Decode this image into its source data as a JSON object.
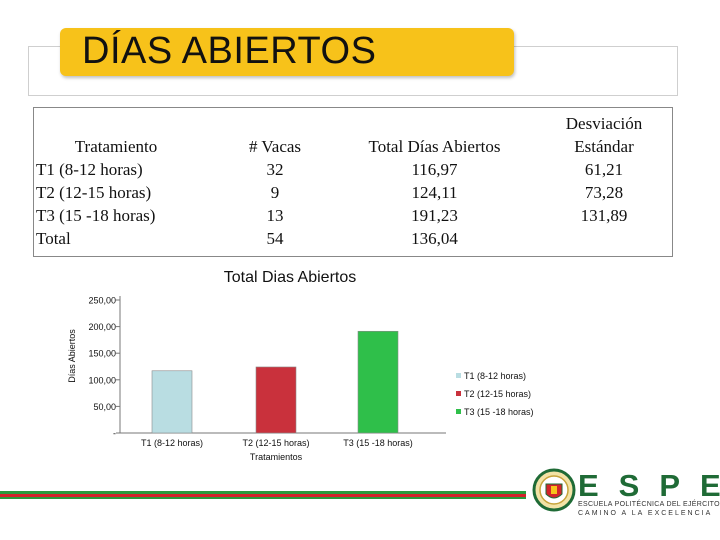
{
  "title": "DÍAS ABIERTOS",
  "table": {
    "headers": {
      "tratamiento": "Tratamiento",
      "vacas": "# Vacas",
      "total_dias": "Total Días Abiertos",
      "desviacion_line1": "Desviación",
      "desviacion_line2": "Estándar"
    },
    "rows": [
      {
        "tratamiento": "T1 (8-12 horas)",
        "vacas": "32",
        "total_dias": "116,97",
        "desviacion": "61,21"
      },
      {
        "tratamiento": "T2 (12-15 horas)",
        "vacas": "9",
        "total_dias": "124,11",
        "desviacion": "73,28"
      },
      {
        "tratamiento": "T3 (15 -18 horas)",
        "vacas": "13",
        "total_dias": "191,23",
        "desviacion": "131,89"
      },
      {
        "tratamiento": "Total",
        "vacas": "54",
        "total_dias": "136,04",
        "desviacion": ""
      }
    ]
  },
  "chart_data": {
    "type": "bar",
    "title": "Total Dias Abiertos",
    "xlabel": "Tratamientos",
    "ylabel": "Días Abiertos",
    "ylim": [
      0,
      250
    ],
    "yticks": [
      "-",
      "50,00",
      "100,00",
      "150,00",
      "200,00",
      "250,00"
    ],
    "categories": [
      "T1 (8-12 horas)",
      "T2 (12-15 horas)",
      "T3 (15 -18 horas)"
    ],
    "values": [
      116.97,
      124.11,
      191.23
    ],
    "colors": [
      "#b9dde2",
      "#c9313c",
      "#2fbf4a"
    ],
    "legend": [
      "T1 (8-12 horas)",
      "T2 (12-15 horas)",
      "T3 (15 -18 horas)"
    ],
    "legend_position": "right",
    "grid": false
  },
  "logo": {
    "name": "ESPE",
    "subtitle1": "ESCUELA POLITÉCNICA DEL EJÉRCITO",
    "subtitle2": "CAMINO A LA EXCELENCIA"
  },
  "colors": {
    "title_bg": "#f7c21a",
    "stripe_green": "#2a9a3c",
    "stripe_red": "#d3232a",
    "brand_green": "#1f6b36"
  }
}
